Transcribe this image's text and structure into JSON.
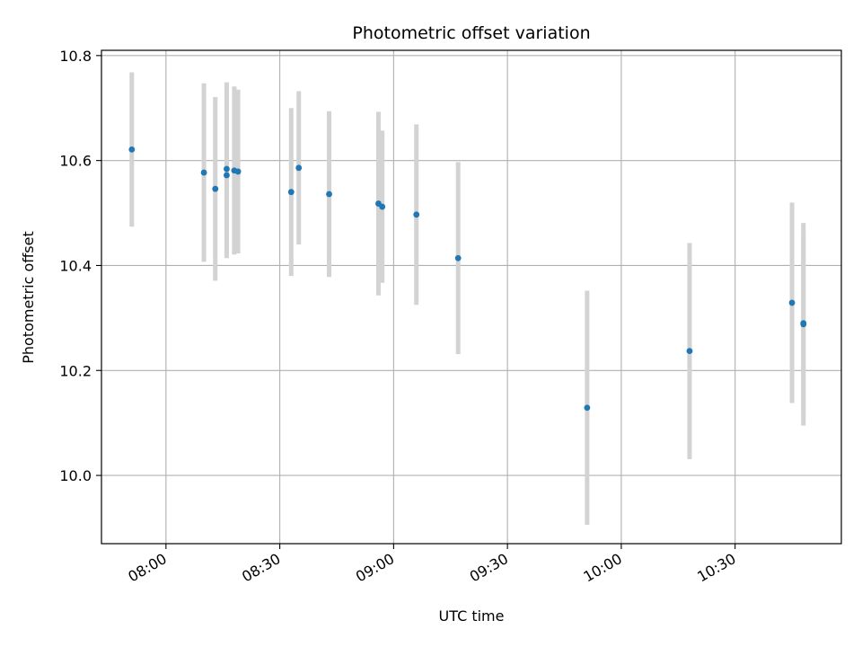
{
  "chart_data": {
    "type": "scatter",
    "title": "Photometric offset variation",
    "xlabel": "UTC time",
    "ylabel": "Photometric offset",
    "x_unit": "minutes after midnight UTC",
    "xlim": [
      "07:43",
      "10:58"
    ],
    "ylim": [
      9.87,
      10.81
    ],
    "xticks": [
      "08:00",
      "08:30",
      "09:00",
      "09:30",
      "10:00",
      "10:30"
    ],
    "yticks": [
      10.0,
      10.2,
      10.4,
      10.6,
      10.8
    ],
    "ytick_labels": [
      "10.0",
      "10.2",
      "10.4",
      "10.6",
      "10.8"
    ],
    "grid": true,
    "colors": {
      "points": "#1f77b4",
      "error_bars": "#d3d3d3",
      "grid": "#b0b0b0"
    },
    "points": [
      {
        "time": "07:51",
        "y": 10.621,
        "err": 0.147
      },
      {
        "time": "08:10",
        "y": 10.577,
        "err": 0.17
      },
      {
        "time": "08:13",
        "y": 10.546,
        "err": 0.175
      },
      {
        "time": "08:16",
        "y": 10.584,
        "err": 0.165
      },
      {
        "time": "08:16",
        "y": 10.572,
        "err": 0.158
      },
      {
        "time": "08:18",
        "y": 10.581,
        "err": 0.16
      },
      {
        "time": "08:19",
        "y": 10.579,
        "err": 0.156
      },
      {
        "time": "08:33",
        "y": 10.54,
        "err": 0.16
      },
      {
        "time": "08:35",
        "y": 10.586,
        "err": 0.146
      },
      {
        "time": "08:43",
        "y": 10.536,
        "err": 0.158
      },
      {
        "time": "08:56",
        "y": 10.518,
        "err": 0.175
      },
      {
        "time": "08:57",
        "y": 10.512,
        "err": 0.145
      },
      {
        "time": "09:06",
        "y": 10.497,
        "err": 0.172
      },
      {
        "time": "09:17",
        "y": 10.414,
        "err": 0.183
      },
      {
        "time": "09:51",
        "y": 10.129,
        "err": 0.223
      },
      {
        "time": "10:18",
        "y": 10.237,
        "err": 0.206
      },
      {
        "time": "10:45",
        "y": 10.329,
        "err": 0.191
      },
      {
        "time": "10:48",
        "y": 10.288,
        "err": 0.193
      },
      {
        "time": "10:48",
        "y": 10.29,
        "err": 0.166
      }
    ]
  }
}
